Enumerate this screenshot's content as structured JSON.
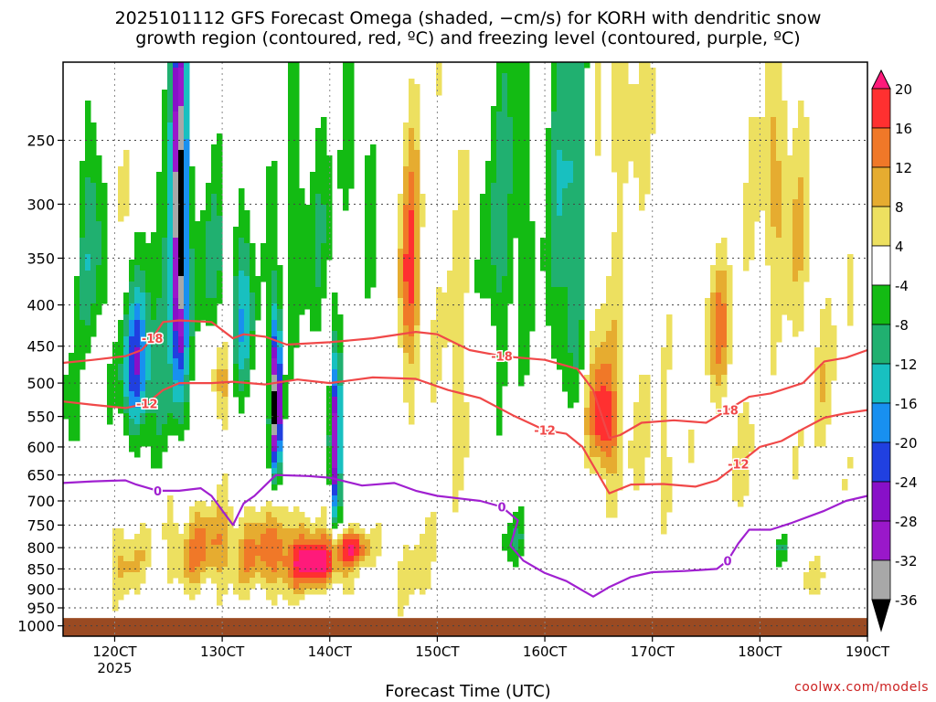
{
  "title": {
    "line1": "2025101112 GFS Forecast Omega (shaded, −cm/s) for KORH with dendritic snow",
    "line2": "growth region (contoured, red, ºC) and freezing level (contoured, purple, ºC)"
  },
  "credit": "coolwx.com/models",
  "chart_data": {
    "type": "heatmap",
    "xlabel": "Forecast Time (UTC)",
    "ylabel": "",
    "x_ticks": [
      {
        "value": 120,
        "label": "120CT",
        "sublabel": "2025"
      },
      {
        "value": 130,
        "label": "130CT"
      },
      {
        "value": 140,
        "label": "140CT"
      },
      {
        "value": 150,
        "label": "150CT"
      },
      {
        "value": 160,
        "label": "160CT"
      },
      {
        "value": 170,
        "label": "170CT"
      },
      {
        "value": 180,
        "label": "180CT"
      },
      {
        "value": 190,
        "label": "190CT"
      }
    ],
    "xlim": [
      115.2,
      190
    ],
    "y_ticks": [
      250,
      300,
      350,
      400,
      450,
      500,
      550,
      600,
      650,
      700,
      750,
      800,
      850,
      900,
      950,
      1000
    ],
    "ylim": [
      200,
      1030
    ],
    "y_scale": "log",
    "grid": true,
    "colorbar": {
      "levels": [
        "20",
        "16",
        "12",
        "8",
        "4",
        "-4",
        "-8",
        "-12",
        "-16",
        "-20",
        "-24",
        "-28",
        "-32",
        "-36"
      ],
      "colors": [
        "#ff1a7a",
        "#ff3030",
        "#f07828",
        "#e6ac30",
        "#ede060",
        "#ffffff",
        "#13bb13",
        "#20b070",
        "#18c0c0",
        "#1890f0",
        "#2040e0",
        "#8810c8",
        "#9a18ca",
        "#a8a8a8",
        "#000000"
      ]
    },
    "contours": [
      {
        "label": "-18",
        "color": "#f04848",
        "points": [
          [
            115.2,
            472
          ],
          [
            118,
            468
          ],
          [
            121,
            463
          ],
          [
            122.5,
            455
          ],
          [
            123.5,
            440
          ],
          [
            124.5,
            420
          ],
          [
            126,
            418
          ],
          [
            129,
            420
          ],
          [
            131,
            440
          ],
          [
            132,
            435
          ],
          [
            134,
            438
          ],
          [
            136,
            448
          ],
          [
            140,
            445
          ],
          [
            144,
            440
          ],
          [
            148,
            432
          ],
          [
            150,
            435
          ],
          [
            153,
            455
          ],
          [
            156,
            463
          ],
          [
            160,
            468
          ],
          [
            163,
            480
          ],
          [
            164.5,
            510
          ],
          [
            165.5,
            560
          ],
          [
            166,
            585
          ],
          [
            167,
            580
          ],
          [
            169,
            560
          ],
          [
            172,
            556
          ],
          [
            175,
            560
          ],
          [
            177,
            540
          ],
          [
            179,
            520
          ],
          [
            181,
            515
          ],
          [
            184,
            500
          ],
          [
            186,
            470
          ],
          [
            188,
            465
          ],
          [
            190,
            455
          ]
        ]
      },
      {
        "label": "-12",
        "color": "#f04848",
        "points": [
          [
            115.2,
            527
          ],
          [
            118,
            532
          ],
          [
            121,
            537
          ],
          [
            123,
            530
          ],
          [
            124.5,
            510
          ],
          [
            126,
            500
          ],
          [
            129,
            500
          ],
          [
            131,
            498
          ],
          [
            134,
            502
          ],
          [
            137,
            495
          ],
          [
            140,
            500
          ],
          [
            144,
            492
          ],
          [
            148,
            494
          ],
          [
            151,
            510
          ],
          [
            154,
            522
          ],
          [
            157,
            548
          ],
          [
            160,
            572
          ],
          [
            162,
            578
          ],
          [
            163.5,
            600
          ],
          [
            165,
            650
          ],
          [
            166,
            685
          ],
          [
            168,
            668
          ],
          [
            171,
            667
          ],
          [
            174,
            672
          ],
          [
            176,
            660
          ],
          [
            178,
            630
          ],
          [
            180,
            600
          ],
          [
            182,
            590
          ],
          [
            184,
            570
          ],
          [
            186,
            552
          ],
          [
            188,
            545
          ],
          [
            190,
            540
          ]
        ]
      },
      {
        "label": "0",
        "color": "#a020d0",
        "points": [
          [
            115.2,
            665
          ],
          [
            118,
            662
          ],
          [
            121,
            660
          ],
          [
            122,
            668
          ],
          [
            124,
            680
          ],
          [
            126,
            680
          ],
          [
            128,
            675
          ],
          [
            129,
            690
          ],
          [
            131,
            750
          ],
          [
            132,
            705
          ],
          [
            133,
            690
          ],
          [
            135,
            650
          ],
          [
            138,
            652
          ],
          [
            140,
            655
          ],
          [
            143,
            670
          ],
          [
            146,
            665
          ],
          [
            148,
            680
          ],
          [
            150,
            690
          ],
          [
            154,
            700
          ],
          [
            156,
            712
          ],
          [
            157.5,
            740
          ],
          [
            156.8,
            795
          ],
          [
            158,
            830
          ],
          [
            160,
            860
          ],
          [
            162,
            880
          ],
          [
            164.5,
            920
          ],
          [
            166,
            895
          ],
          [
            168,
            870
          ],
          [
            170,
            858
          ],
          [
            173,
            855
          ],
          [
            176,
            850
          ],
          [
            177,
            830
          ],
          [
            178,
            790
          ],
          [
            179,
            760
          ],
          [
            181,
            760
          ],
          [
            183,
            745
          ],
          [
            186,
            720
          ],
          [
            188,
            700
          ],
          [
            190,
            690
          ]
        ]
      }
    ]
  }
}
